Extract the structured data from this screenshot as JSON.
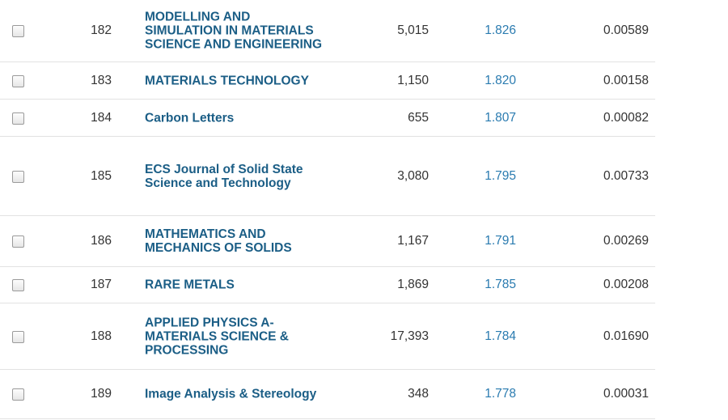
{
  "table": {
    "rows": [
      {
        "rank": "182",
        "journal": [
          "MODELLING AND",
          "SIMULATION IN MATERIALS",
          "SCIENCE AND ENGINEERING"
        ],
        "total_cites": "5,015",
        "impact_factor": "1.826",
        "eigenfactor": "0.00589"
      },
      {
        "rank": "183",
        "journal": [
          "MATERIALS TECHNOLOGY"
        ],
        "total_cites": "1,150",
        "impact_factor": "1.820",
        "eigenfactor": "0.00158"
      },
      {
        "rank": "184",
        "journal": [
          "Carbon Letters"
        ],
        "total_cites": "655",
        "impact_factor": "1.807",
        "eigenfactor": "0.00082"
      },
      {
        "rank": "185",
        "journal": [
          "ECS Journal of Solid State",
          "Science and Technology"
        ],
        "total_cites": "3,080",
        "impact_factor": "1.795",
        "eigenfactor": "0.00733"
      },
      {
        "rank": "186",
        "journal": [
          "MATHEMATICS AND",
          "MECHANICS OF SOLIDS"
        ],
        "total_cites": "1,167",
        "impact_factor": "1.791",
        "eigenfactor": "0.00269"
      },
      {
        "rank": "187",
        "journal": [
          "RARE METALS"
        ],
        "total_cites": "1,869",
        "impact_factor": "1.785",
        "eigenfactor": "0.00208"
      },
      {
        "rank": "188",
        "journal": [
          "APPLIED PHYSICS A-",
          "MATERIALS SCIENCE &",
          "PROCESSING"
        ],
        "total_cites": "17,393",
        "impact_factor": "1.784",
        "eigenfactor": "0.01690"
      },
      {
        "rank": "189",
        "journal": [
          "Image Analysis & Stereology"
        ],
        "total_cites": "348",
        "impact_factor": "1.778",
        "eigenfactor": "0.00031"
      }
    ]
  }
}
